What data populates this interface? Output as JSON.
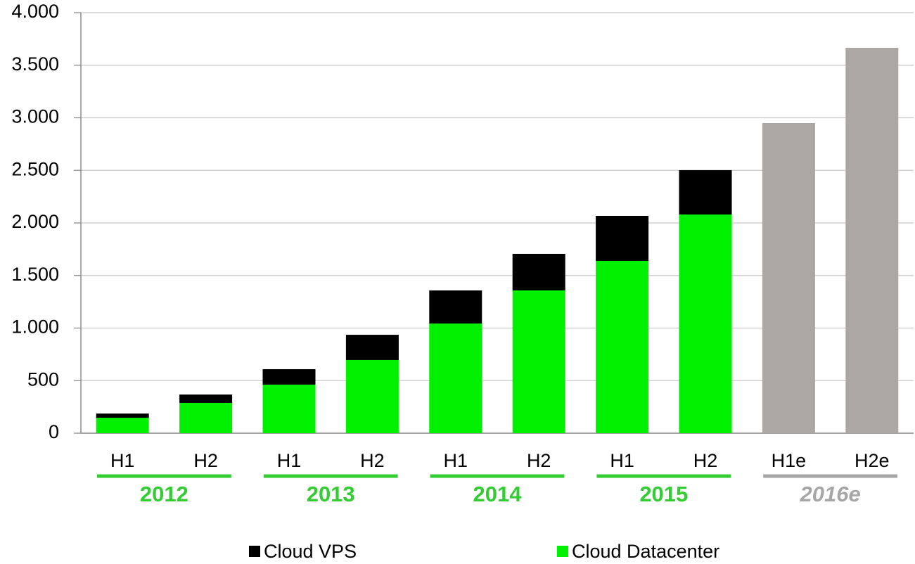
{
  "chart_data": {
    "type": "stacked_bar",
    "categories": [
      "H1",
      "H2",
      "H1",
      "H2",
      "H1",
      "H2",
      "H1",
      "H2",
      "H1e",
      "H2e"
    ],
    "groups": [
      {
        "label": "2012",
        "color": "#33cc33"
      },
      {
        "label": "2013",
        "color": "#33cc33"
      },
      {
        "label": "2014",
        "color": "#33cc33"
      },
      {
        "label": "2015",
        "color": "#33cc33"
      },
      {
        "label": "2016e",
        "color": "#a6a6a6",
        "italic": true
      }
    ],
    "series": [
      {
        "name": "Cloud Datacenter",
        "color": "#00f000",
        "values": [
          147,
          288,
          462,
          696,
          1043,
          1358,
          1639,
          2080,
          null,
          null
        ]
      },
      {
        "name": "Cloud VPS",
        "color": "#000000",
        "values": [
          40,
          80,
          147,
          240,
          315,
          348,
          428,
          422,
          null,
          null
        ]
      }
    ],
    "estimates": {
      "color": "#aba7a4",
      "values": [
        null,
        null,
        null,
        null,
        null,
        null,
        null,
        null,
        2950,
        3666
      ]
    },
    "legend_order": [
      1,
      0
    ],
    "ylim": [
      0,
      4000
    ],
    "yticks": [
      0,
      500,
      {
        "value": 1000,
        "label": "1.000"
      },
      {
        "value": 1500,
        "label": "1.500"
      },
      {
        "value": 2000,
        "label": "2.000"
      },
      {
        "value": 2500,
        "label": "2.500"
      },
      {
        "value": 3000,
        "label": "3.000"
      },
      {
        "value": 3500,
        "label": "3.500"
      },
      {
        "value": 4000,
        "label": "4.000"
      }
    ],
    "grid": true
  }
}
